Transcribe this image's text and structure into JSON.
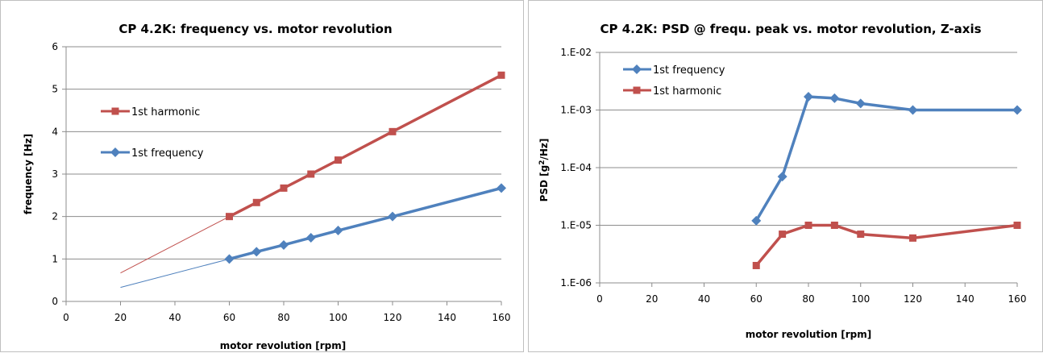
{
  "chart_data": [
    {
      "type": "line",
      "title": "CP 4.2K: frequency vs. motor revolution",
      "xlabel": "motor revolution [rpm]",
      "ylabel": "frequency [Hz]",
      "xlim": [
        0,
        160
      ],
      "ylim": [
        0,
        6
      ],
      "xticks": [
        "0",
        "20",
        "40",
        "60",
        "80",
        "100",
        "120",
        "140",
        "160"
      ],
      "yticks": [
        "0",
        "1",
        "2",
        "3",
        "4",
        "5",
        "6"
      ],
      "grid": "horizontal",
      "legend_position": "left",
      "series": [
        {
          "name": "1st harmonic",
          "color": "#C0504D",
          "marker": "square",
          "x": [
            60,
            70,
            80,
            90,
            100,
            120,
            160
          ],
          "y": [
            2.0,
            2.33,
            2.67,
            3.0,
            3.33,
            4.0,
            5.33
          ],
          "trendline": {
            "x": [
              20,
              60
            ],
            "y": [
              0.67,
              2.0
            ]
          }
        },
        {
          "name": "1st frequency",
          "color": "#4F81BD",
          "marker": "diamond",
          "x": [
            60,
            70,
            80,
            90,
            100,
            120,
            160
          ],
          "y": [
            1.0,
            1.17,
            1.33,
            1.5,
            1.67,
            2.0,
            2.67
          ],
          "trendline": {
            "x": [
              20,
              60
            ],
            "y": [
              0.33,
              1.0
            ]
          }
        }
      ]
    },
    {
      "type": "line",
      "title": "CP 4.2K: PSD @ frequ. peak vs. motor revolution, Z-axis",
      "xlabel": "motor revolution [rpm]",
      "ylabel_parts": [
        "PSD [g",
        "2",
        "/Hz]"
      ],
      "xlim": [
        0,
        160
      ],
      "ylim": [
        1e-06,
        0.01
      ],
      "yscale": "log",
      "xticks": [
        "0",
        "20",
        "40",
        "60",
        "80",
        "100",
        "120",
        "140",
        "160"
      ],
      "yticks": [
        "1.E-06",
        "1.E-05",
        "1.E-04",
        "1.E-03",
        "1.E-02"
      ],
      "grid": "horizontal",
      "legend_position": "top-left",
      "series": [
        {
          "name": "1st frequency",
          "color": "#4F81BD",
          "marker": "diamond",
          "x": [
            60,
            70,
            80,
            90,
            100,
            120,
            160
          ],
          "y": [
            1.2e-05,
            7e-05,
            0.0017,
            0.0016,
            0.0013,
            0.001,
            0.001
          ]
        },
        {
          "name": "1st harmonic",
          "color": "#C0504D",
          "marker": "square",
          "x": [
            60,
            70,
            80,
            90,
            100,
            120,
            160
          ],
          "y": [
            2e-06,
            7e-06,
            1e-05,
            1e-05,
            7e-06,
            6e-06,
            1e-05
          ]
        }
      ]
    }
  ]
}
